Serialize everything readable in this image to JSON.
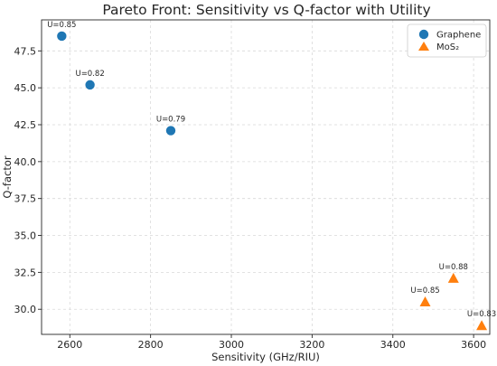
{
  "chart_data": {
    "type": "scatter",
    "title": "Pareto Front: Sensitivity vs Q-factor with Utility",
    "xlabel": "Sensitivity (GHz/RIU)",
    "ylabel": "Q-factor",
    "xlim": [
      2530,
      3640
    ],
    "ylim": [
      28.3,
      49.6
    ],
    "xticks": [
      2600,
      2800,
      3000,
      3200,
      3400,
      3600
    ],
    "yticks": [
      30.0,
      32.5,
      35.0,
      37.5,
      40.0,
      42.5,
      45.0,
      47.5
    ],
    "xtick_labels": [
      "2600",
      "2800",
      "3000",
      "3200",
      "3400",
      "3600"
    ],
    "ytick_labels": [
      "30.0",
      "32.5",
      "35.0",
      "37.5",
      "40.0",
      "42.5",
      "45.0",
      "47.5"
    ],
    "grid": true,
    "legend_position": "top-right",
    "series": [
      {
        "name": "Graphene",
        "marker": "circle",
        "color": "#1f77b4",
        "points": [
          {
            "x": 2580,
            "y": 48.5,
            "label": "U=0.85"
          },
          {
            "x": 2650,
            "y": 45.2,
            "label": "U=0.82"
          },
          {
            "x": 2850,
            "y": 42.1,
            "label": "U=0.79"
          }
        ]
      },
      {
        "name": "MoS₂",
        "marker": "triangle",
        "color": "#ff7f0e",
        "points": [
          {
            "x": 3550,
            "y": 32.1,
            "label": "U=0.88"
          },
          {
            "x": 3480,
            "y": 30.5,
            "label": "U=0.85"
          },
          {
            "x": 3620,
            "y": 28.9,
            "label": "U=0.83"
          }
        ]
      }
    ]
  }
}
